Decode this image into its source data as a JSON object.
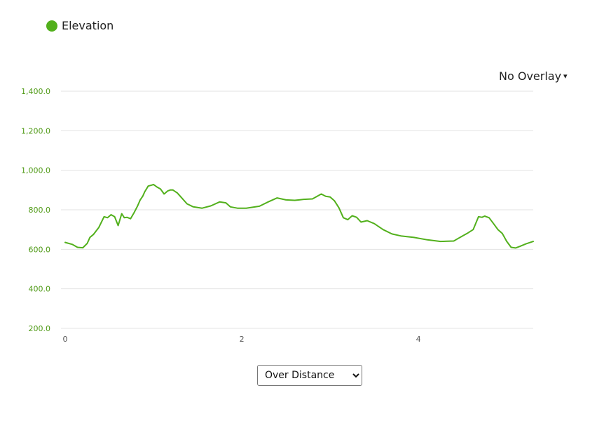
{
  "legend": {
    "label": "Elevation",
    "color": "#52b01c"
  },
  "overlay": {
    "label": "No Overlay",
    "caret": "▾"
  },
  "mode_select": {
    "selected": "Over Distance",
    "options": [
      "Over Distance"
    ]
  },
  "colors": {
    "line": "#52b01c",
    "ytick": "#4f9a16",
    "grid": "#e3e3e3"
  },
  "chart_data": {
    "type": "line",
    "ylim": [
      200,
      1400
    ],
    "xlim": [
      0,
      5.3
    ],
    "yticks": [
      200,
      400,
      600,
      800,
      1000,
      1200,
      1400
    ],
    "ytick_labels": [
      "200.0",
      "400.0",
      "600.0",
      "800.0",
      "1,000.0",
      "1,200.0",
      "1,400.0"
    ],
    "xticks": [
      0,
      2,
      4
    ],
    "xtick_labels": [
      "0",
      "2",
      "4"
    ],
    "series": [
      {
        "name": "Elevation",
        "x": [
          0,
          0.08,
          0.14,
          0.2,
          0.25,
          0.28,
          0.32,
          0.38,
          0.44,
          0.48,
          0.52,
          0.56,
          0.6,
          0.64,
          0.67,
          0.7,
          0.74,
          0.78,
          0.82,
          0.85,
          0.88,
          0.9,
          0.94,
          0.98,
          1.0,
          1.04,
          1.08,
          1.12,
          1.16,
          1.19,
          1.22,
          1.27,
          1.32,
          1.38,
          1.45,
          1.55,
          1.65,
          1.75,
          1.82,
          1.87,
          1.95,
          2.05,
          2.2,
          2.3,
          2.4,
          2.5,
          2.6,
          2.65,
          2.7,
          2.8,
          2.9,
          2.95,
          3.0,
          3.05,
          3.1,
          3.15,
          3.2,
          3.25,
          3.3,
          3.35,
          3.42,
          3.5,
          3.6,
          3.7,
          3.8,
          3.95,
          4.1,
          4.25,
          4.4,
          4.45,
          4.5,
          4.55,
          4.62,
          4.68,
          4.72,
          4.75,
          4.8,
          4.85,
          4.9,
          4.95,
          5.0,
          5.05,
          5.1,
          5.15,
          5.22,
          5.3
        ],
        "y": [
          635,
          625,
          610,
          608,
          630,
          660,
          675,
          710,
          765,
          760,
          775,
          765,
          720,
          780,
          760,
          762,
          755,
          785,
          820,
          850,
          870,
          890,
          920,
          925,
          928,
          915,
          905,
          880,
          895,
          900,
          900,
          885,
          860,
          830,
          815,
          808,
          820,
          840,
          835,
          815,
          808,
          808,
          818,
          840,
          860,
          850,
          848,
          850,
          853,
          855,
          880,
          868,
          865,
          845,
          810,
          760,
          750,
          770,
          762,
          738,
          745,
          730,
          700,
          678,
          668,
          660,
          648,
          640,
          642,
          655,
          668,
          680,
          700,
          765,
          762,
          768,
          760,
          730,
          700,
          680,
          640,
          610,
          607,
          615,
          628,
          640
        ]
      }
    ]
  }
}
